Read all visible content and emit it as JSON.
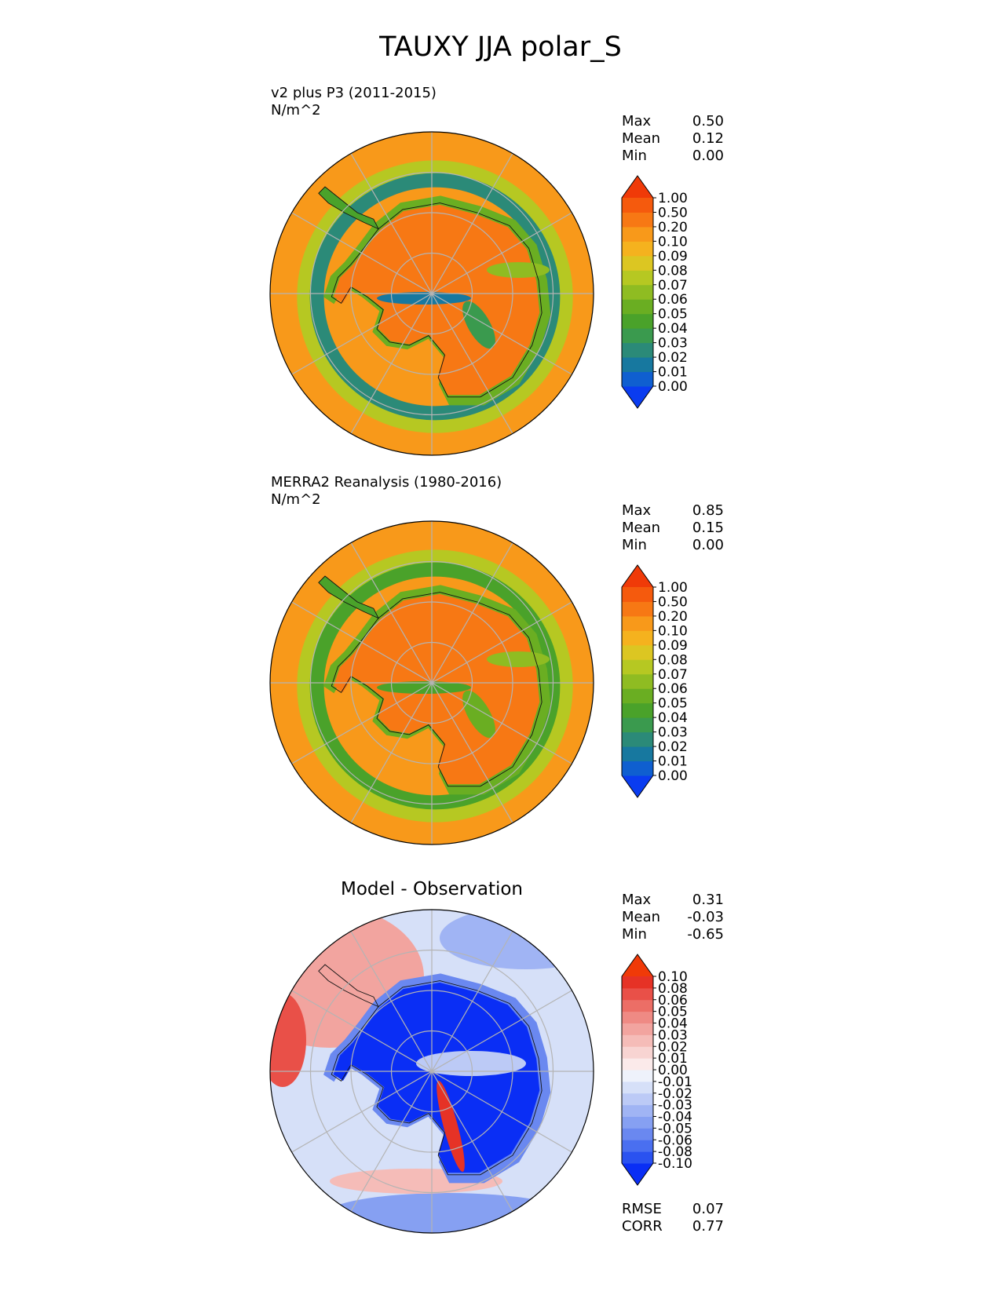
{
  "title": "TAUXY JJA polar_S",
  "panels": [
    {
      "id": "test",
      "label": "v2 plus P3 (2011-2015)",
      "units": "N/m^2",
      "stats": [
        {
          "name": "Max",
          "value": "0.50"
        },
        {
          "name": "Mean",
          "value": "0.12"
        },
        {
          "name": "Min",
          "value": "0.00"
        }
      ]
    },
    {
      "id": "ref",
      "label": "MERRA2 Reanalysis (1980-2016)",
      "units": "N/m^2",
      "stats": [
        {
          "name": "Max",
          "value": "0.85"
        },
        {
          "name": "Mean",
          "value": "0.15"
        },
        {
          "name": "Min",
          "value": "0.00"
        }
      ]
    },
    {
      "id": "diff",
      "title": "Model - Observation",
      "stats": [
        {
          "name": "Max",
          "value": "0.31"
        },
        {
          "name": "Mean",
          "value": "-0.03"
        },
        {
          "name": "Min",
          "value": "-0.65"
        }
      ],
      "metrics": [
        {
          "name": "RMSE",
          "value": "0.07"
        },
        {
          "name": "CORR",
          "value": "0.77"
        }
      ]
    }
  ],
  "chart_data": [
    {
      "type": "heatmap",
      "projection": "south polar stereographic",
      "title": "v2 plus P3 (2011-2015)",
      "units": "N/m^2",
      "colorbar_levels": [
        "0.00",
        "0.01",
        "0.02",
        "0.03",
        "0.04",
        "0.05",
        "0.06",
        "0.07",
        "0.08",
        "0.09",
        "0.10",
        "0.20",
        "0.50",
        "1.00"
      ],
      "colorbar_colors": [
        "#0a3cf0",
        "#0f5fd0",
        "#17789f",
        "#2b8a78",
        "#3a9a4e",
        "#4aa22a",
        "#6aae22",
        "#8fbc22",
        "#b6c822",
        "#dcc622",
        "#f5b21e",
        "#f8991a",
        "#f77814",
        "#f55a0d",
        "#f03a08"
      ],
      "regions": {
        "ocean_outer": 0.1,
        "storm_track_ring": 0.02,
        "antarctic_interior": 0.2,
        "coastal_belt": 0.05
      }
    },
    {
      "type": "heatmap",
      "projection": "south polar stereographic",
      "title": "MERRA2 Reanalysis (1980-2016)",
      "units": "N/m^2",
      "colorbar_levels": [
        "0.00",
        "0.01",
        "0.02",
        "0.03",
        "0.04",
        "0.05",
        "0.06",
        "0.07",
        "0.08",
        "0.09",
        "0.10",
        "0.20",
        "0.50",
        "1.00"
      ],
      "colorbar_colors": [
        "#0a3cf0",
        "#0f5fd0",
        "#17789f",
        "#2b8a78",
        "#3a9a4e",
        "#4aa22a",
        "#6aae22",
        "#8fbc22",
        "#b6c822",
        "#dcc622",
        "#f5b21e",
        "#f8991a",
        "#f77814",
        "#f55a0d",
        "#f03a08"
      ],
      "regions": {
        "ocean_outer": 0.1,
        "storm_track_ring": 0.04,
        "antarctic_interior": 0.2,
        "coastal_belt": 0.05
      }
    },
    {
      "type": "heatmap",
      "projection": "south polar stereographic",
      "title": "Model - Observation",
      "colorbar_levels": [
        "-0.10",
        "-0.08",
        "-0.06",
        "-0.05",
        "-0.04",
        "-0.03",
        "-0.02",
        "-0.01",
        "0.00",
        "0.01",
        "0.02",
        "0.03",
        "0.04",
        "0.05",
        "0.06",
        "0.08",
        "0.10"
      ],
      "colorbar_colors": [
        "#0a2ef5",
        "#2a52f0",
        "#4a6ff0",
        "#6a88f0",
        "#86a0f2",
        "#a0b4f4",
        "#bccaf6",
        "#d6e0f8",
        "#eef2fb",
        "#fbeaea",
        "#f8d4d2",
        "#f5bcb8",
        "#f2a49f",
        "#ef8a84",
        "#ec6e66",
        "#e95048",
        "#e63226",
        "#f03a08"
      ],
      "regions": {
        "antarctic_interior": -0.1,
        "outer_ocean_west": 0.03,
        "outer_ocean_east": -0.02,
        "ross_sea_coast": 0.1
      }
    }
  ]
}
